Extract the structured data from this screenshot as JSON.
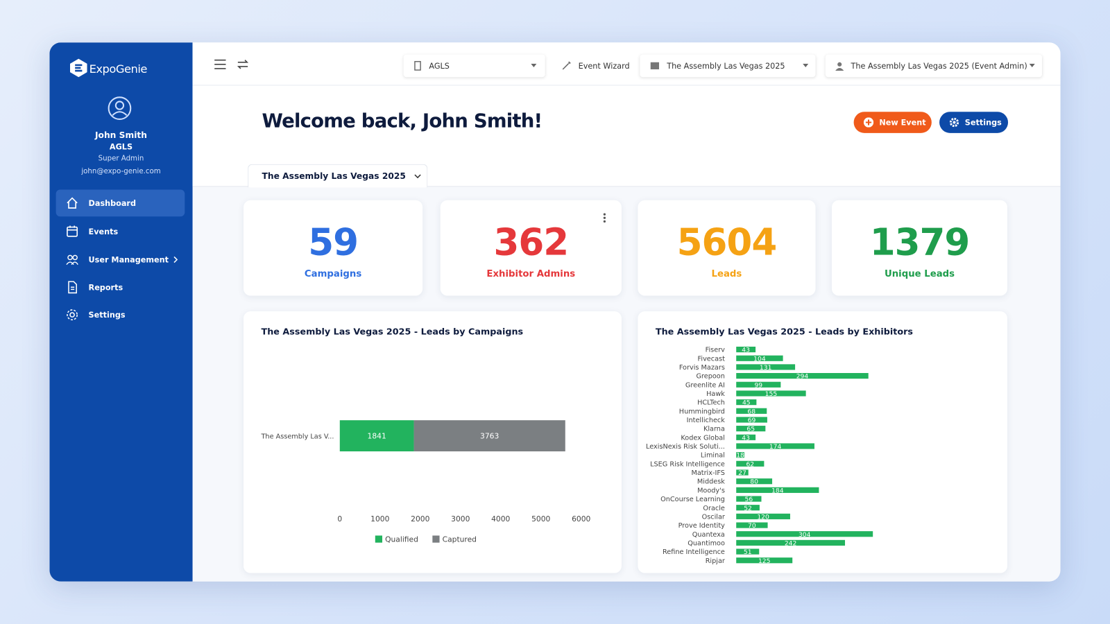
{
  "sidebar": {
    "brand": "ExpoGenie",
    "user": {
      "name": "John Smith",
      "org": "AGLS",
      "role": "Super Admin",
      "email": "john@expo-genie.com"
    },
    "nav": [
      "Dashboard",
      "Events",
      "User Management",
      "Reports",
      "Settings"
    ]
  },
  "topbar": {
    "org": "AGLS",
    "wizard": "Event Wizard",
    "event": "The Assembly Las Vegas 2025",
    "role": "The Assembly Las Vegas 2025 (Event Admin)"
  },
  "header": {
    "title": "Welcome back, John Smith!",
    "buttons": [
      "New Event",
      "Settings"
    ]
  },
  "tab": "The Assembly Las Vegas 2025",
  "stats": [
    {
      "value": 59,
      "label": "Campaigns",
      "color": "#2f6fe0"
    },
    {
      "value": 362,
      "label": "Exhibitor Admins",
      "color": "#e5383b"
    },
    {
      "value": 5604,
      "label": "Leads",
      "color": "#f5a214"
    },
    {
      "value": 1379,
      "label": "Unique Leads",
      "color": "#1f9d4c"
    }
  ],
  "chart_data": [
    {
      "type": "bar",
      "stacked": true,
      "title": "The Assembly Las Vegas 2025 - Leads by Campaigns",
      "categories": [
        "The Assembly Las V..."
      ],
      "series": [
        {
          "name": "Qualified",
          "color": "#22b35e",
          "values": [
            1841
          ]
        },
        {
          "name": "Captured",
          "color": "#7b7f82",
          "values": [
            3763
          ]
        }
      ],
      "xlim": [
        0,
        6000
      ],
      "xticks": [
        0,
        1000,
        2000,
        3000,
        4000,
        5000,
        6000
      ]
    },
    {
      "type": "bar",
      "title": "The Assembly Las Vegas 2025 - Leads by Exhibitors",
      "color": "#22b35e",
      "categories": [
        "Fiserv",
        "Fivecast",
        "Forvis Mazars",
        "Grepoon",
        "Greenlite AI",
        "Hawk",
        "HCLTech",
        "Hummingbird",
        "Intellicheck",
        "Klarna",
        "Kodex Global",
        "LexisNexis Risk Soluti...",
        "Liminal",
        "LSEG Risk Intelligence",
        "Matrix-IFS",
        "Middesk",
        "Moody's",
        "OnCourse Learning",
        "Oracle",
        "Oscilar",
        "Prove Identity",
        "Quantexa",
        "Quantimoo",
        "Refine Intelligence",
        "Ripjar"
      ],
      "values": [
        43,
        104,
        131,
        294,
        99,
        155,
        45,
        68,
        69,
        65,
        43,
        174,
        18,
        62,
        27,
        80,
        184,
        56,
        52,
        120,
        70,
        304,
        242,
        51,
        125
      ]
    }
  ]
}
